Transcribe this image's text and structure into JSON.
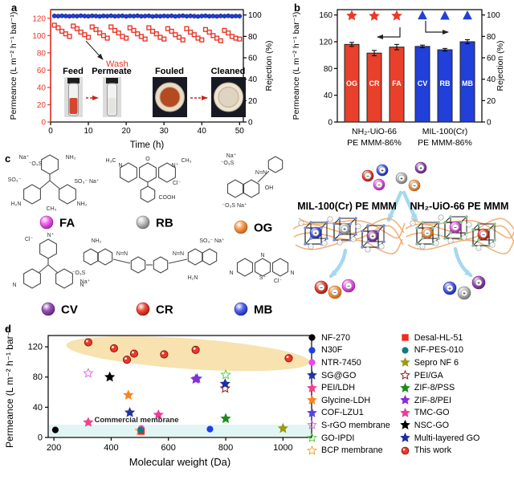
{
  "panels": {
    "a": "a",
    "b": "b",
    "c": "c",
    "d": "d"
  },
  "colors": {
    "red": "#e8392a",
    "blue": "#2140d9",
    "red_dark": "#8f1d12",
    "blue_dark": "#16247f",
    "ellipse": "#f7e2b0",
    "band": "#e1f6f4",
    "chain": "#f0aa6a",
    "arrow_blue": "#a6d8f0"
  },
  "chart_data": [
    {
      "panel": "a",
      "type": "line",
      "xlabel": "Time (h)",
      "ylabel_left": "Permeance (L m⁻² h⁻¹ bar⁻¹)",
      "ylabel_right": "Rejection (%)",
      "xlim": [
        0,
        51
      ],
      "xticks": [
        0,
        10,
        20,
        30,
        40,
        50
      ],
      "ylim_left": [
        0,
        130
      ],
      "yticks_left": [
        0,
        20,
        40,
        60,
        80,
        100,
        120
      ],
      "ylim_right": [
        0,
        105
      ],
      "yticks_right": [
        0,
        20,
        40,
        60,
        80,
        100
      ],
      "annotation": "Wash",
      "insets": [
        "Feed",
        "Permeate",
        "Fouled",
        "Cleaned"
      ],
      "series": [
        {
          "name": "Permeance",
          "marker": "square-open",
          "color": "#e8392a",
          "axis": "left",
          "x": [
            1,
            2,
            3,
            4,
            5,
            6,
            7,
            8,
            9,
            10,
            11,
            12,
            13,
            14,
            15,
            16,
            17,
            18,
            19,
            20,
            21,
            22,
            23,
            24,
            25,
            26,
            27,
            28,
            29,
            30,
            31,
            32,
            33,
            34,
            35,
            36,
            37,
            38,
            39,
            40,
            41,
            42,
            43,
            44,
            45,
            46,
            47,
            48,
            49,
            50
          ],
          "y": [
            112,
            109,
            105,
            102,
            99,
            111,
            108,
            104,
            101,
            98,
            110,
            107,
            103,
            100,
            97,
            110,
            106,
            103,
            99,
            97,
            109,
            106,
            102,
            99,
            96,
            109,
            105,
            102,
            98,
            96,
            108,
            105,
            101,
            98,
            95,
            108,
            104,
            101,
            97,
            95,
            107,
            104,
            100,
            97,
            94,
            106,
            103,
            99,
            97,
            96
          ]
        },
        {
          "name": "Rejection",
          "marker": "circle",
          "color": "#2140d9",
          "axis": "right",
          "x": [
            1,
            2,
            3,
            4,
            5,
            6,
            7,
            8,
            9,
            10,
            11,
            12,
            13,
            14,
            15,
            16,
            17,
            18,
            19,
            20,
            21,
            22,
            23,
            24,
            25,
            26,
            27,
            28,
            29,
            30,
            31,
            32,
            33,
            34,
            35,
            36,
            37,
            38,
            39,
            40,
            41,
            42,
            43,
            44,
            45,
            46,
            47,
            48,
            49,
            50
          ],
          "y": [
            99.1,
            98.9,
            99.2,
            99.0,
            98.8,
            99.1,
            98.9,
            99.3,
            99.0,
            98.8,
            99.2,
            99.0,
            98.7,
            99.1,
            98.9,
            99.3,
            98.8,
            99.0,
            99.2,
            98.7,
            99.1,
            98.9,
            99.3,
            98.8,
            99.0,
            99.2,
            98.6,
            99.0,
            98.8,
            99.1,
            98.9,
            99.2,
            98.7,
            99.0,
            99.3,
            98.8,
            99.1,
            98.9,
            98.6,
            99.0,
            99.2,
            98.8,
            99.0,
            98.7,
            99.1,
            98.9,
            99.2,
            98.8,
            99.0,
            98.9
          ]
        }
      ]
    },
    {
      "panel": "b",
      "type": "bar",
      "ylabel_left": "Permeance (L m⁻² h⁻¹ bar⁻¹)",
      "ylabel_right": "Rejection (%)",
      "ylim_left": [
        0,
        168
      ],
      "yticks_left": [
        0,
        40,
        80,
        120,
        160
      ],
      "ylim_right": [
        0,
        105
      ],
      "yticks_right": [
        0,
        20,
        40,
        60,
        80,
        100
      ],
      "categories": [
        "OG",
        "CR",
        "FA",
        "CV",
        "RB",
        "MB"
      ],
      "values": [
        116,
        103,
        112,
        113,
        108,
        120
      ],
      "errors": [
        3,
        4,
        4,
        2,
        2,
        3
      ],
      "bar_colors": [
        "#e8402a",
        "#e8402a",
        "#e8402a",
        "#2140d9",
        "#2140d9",
        "#2140d9"
      ],
      "rejection_markers": {
        "values": [
          99.3,
          99.0,
          99.2,
          99.4,
          99.1,
          99.3
        ],
        "shapes": [
          "star",
          "star",
          "star",
          "triangle",
          "triangle",
          "triangle"
        ],
        "colors": [
          "#e8392a",
          "#e8392a",
          "#e8392a",
          "#2140d9",
          "#2140d9",
          "#2140d9"
        ]
      },
      "group_labels": [
        [
          "NH₂-UiO-66",
          "PE MMM-86%"
        ],
        [
          "MIL-100(Cr)",
          "PE MMM-86%"
        ]
      ]
    },
    {
      "panel": "d",
      "type": "scatter",
      "xlabel": "Molecular weight (Da)",
      "ylabel": "Permeance (L m⁻² h⁻¹ bar⁻¹)",
      "xlim": [
        180,
        1100
      ],
      "xticks": [
        200,
        400,
        600,
        800,
        1000
      ],
      "ylim": [
        0,
        135
      ],
      "yticks": [
        0,
        40,
        80,
        120
      ],
      "highlight_ellipse": {
        "color": "#f7e2b0"
      },
      "commercial_band": {
        "color": "#e1f6f4",
        "label": "Commercial membrane",
        "ymax": 17
      },
      "legend_position": "right",
      "series": [
        {
          "name": "NF-270",
          "marker": "circle",
          "color": "#000000",
          "open": false,
          "points": [
            [
              205,
              10
            ]
          ]
        },
        {
          "name": "N30F",
          "marker": "circle",
          "color": "#1c3fe8",
          "open": false,
          "points": [
            [
              745,
              11
            ]
          ]
        },
        {
          "name": "NTR-7450",
          "marker": "circle",
          "color": "#ee44ee",
          "open": false,
          "points": [
            [
              505,
              12
            ]
          ]
        },
        {
          "name": "SG@GO",
          "marker": "star",
          "color": "#23349e",
          "open": false,
          "points": [
            [
              465,
              33
            ]
          ]
        },
        {
          "name": "PEI/LDH",
          "marker": "star",
          "color": "#f4418f",
          "open": false,
          "points": [
            [
              320,
              20
            ]
          ]
        },
        {
          "name": "Glycine-LDH",
          "marker": "star",
          "color": "#f5861f",
          "open": false,
          "points": [
            [
              460,
              56
            ]
          ]
        },
        {
          "name": "COF-LZU1",
          "marker": "star",
          "color": "#5b43e0",
          "open": false,
          "points": [
            [
              700,
              78
            ]
          ]
        },
        {
          "name": "S-rGO membrane",
          "marker": "star",
          "color": "#e06ce0",
          "open": true,
          "points": [
            [
              320,
              85
            ]
          ]
        },
        {
          "name": "GO-IPDI",
          "marker": "star",
          "color": "#55cc44",
          "open": true,
          "points": [
            [
              800,
              83
            ]
          ]
        },
        {
          "name": "BCP membrane",
          "marker": "star",
          "color": "#f5a623",
          "open": true,
          "points": [
            [
              500,
              9
            ]
          ]
        },
        {
          "name": "Desal-HL-51",
          "marker": "square",
          "color": "#ed2c1d",
          "open": false,
          "points": [
            [
              505,
              8
            ]
          ]
        },
        {
          "name": "NF-PES-010",
          "marker": "circle",
          "color": "#117a80",
          "open": false,
          "points": [
            [
              503,
              10
            ]
          ]
        },
        {
          "name": "Sepro NF 6",
          "marker": "star",
          "color": "#9b9b13",
          "open": false,
          "points": [
            [
              1000,
              12
            ]
          ]
        },
        {
          "name": "PEI/GA",
          "marker": "star",
          "color": "#8c1a12",
          "open": true,
          "points": [
            [
              798,
              65
            ]
          ]
        },
        {
          "name": "ZIF-8/PSS",
          "marker": "star",
          "color": "#1d8c1d",
          "open": false,
          "points": [
            [
              800,
              25
            ]
          ]
        },
        {
          "name": "ZIF-8/PEI",
          "marker": "star",
          "color": "#8a2bd8",
          "open": false,
          "points": [
            [
              695,
              77
            ]
          ]
        },
        {
          "name": "TMC-GO",
          "marker": "star",
          "color": "#ee3a9a",
          "open": false,
          "points": [
            [
              565,
              30
            ]
          ]
        },
        {
          "name": "NSC-GO",
          "marker": "star",
          "color": "#000000",
          "open": false,
          "points": [
            [
              395,
              80
            ]
          ]
        },
        {
          "name": "Multi-layered GO",
          "marker": "star",
          "color": "#1c2f9e",
          "open": false,
          "points": [
            [
              798,
              71
            ]
          ]
        },
        {
          "name": "This work",
          "marker": "sphere",
          "color": "#e8392a",
          "open": false,
          "points": [
            [
              320,
              126
            ],
            [
              410,
              118
            ],
            [
              455,
              103
            ],
            [
              480,
              111
            ],
            [
              585,
              110
            ],
            [
              695,
              116
            ],
            [
              1020,
              105
            ]
          ]
        }
      ]
    }
  ],
  "panel_c": {
    "dyes": {
      "FA": {
        "abbr": "FA",
        "color": "#f066f0",
        "dark": "#a020a0",
        "charge": "−"
      },
      "RB": {
        "abbr": "RB",
        "color": "#c4c4c4",
        "dark": "#6e6e6e",
        "charge": "+"
      },
      "OG": {
        "abbr": "OG",
        "color": "#f5a055",
        "dark": "#c05a10",
        "charge": "−"
      },
      "CV": {
        "abbr": "CV",
        "color": "#9a55b8",
        "dark": "#5a2070",
        "charge": "+"
      },
      "CR": {
        "abbr": "CR",
        "color": "#f05040",
        "dark": "#a01808",
        "charge": "−"
      },
      "MB": {
        "abbr": "MB",
        "color": "#5868f0",
        "dark": "#1828a0",
        "charge": "+"
      }
    },
    "molecule_labels": {
      "FA": [
        "Na⁺",
        "⁻O₃S",
        "NH₂",
        "SO₃⁻",
        "H₂N",
        "SO₃⁻ Na⁺",
        "NH₂",
        "CH₃"
      ],
      "RB": [
        "H₃C",
        "N",
        "O",
        "N⁺",
        "CH₃",
        "Cl⁻",
        "COOH"
      ],
      "OG": [
        "Na⁺",
        "⁻O₃S",
        "N=N",
        "OH",
        "⁻O₃S Na⁺"
      ],
      "CV": [
        "Cl⁻",
        "N⁺",
        "N",
        "N"
      ],
      "CR": [
        "NH₂",
        "⁻O₃S",
        "Na⁺",
        "N=N",
        "N=N",
        "SO₃⁻ Na⁺",
        "H₂N"
      ],
      "MB": [
        "N",
        "N",
        "S⁺",
        "N",
        "Cl⁻"
      ]
    },
    "free_dyes": [
      "CR",
      "MB",
      "FA",
      "RB",
      "OG",
      "CV"
    ],
    "membranes": {
      "left": {
        "label": "MIL-100(Cr) PE MMM",
        "captured": [
          "MB",
          "RB",
          "CV"
        ],
        "released": [
          "CR",
          "OG",
          "FA"
        ]
      },
      "right": {
        "label": "NH₂-UiO-66 PE MMM",
        "captured": [
          "OG",
          "FA",
          "CR"
        ],
        "released": [
          "MB",
          "RB",
          "CV"
        ]
      }
    }
  }
}
